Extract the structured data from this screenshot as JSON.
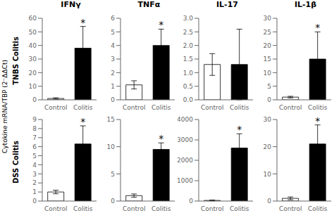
{
  "ylabel": "Cytokine mRNA/TBP (2⁻ΔΔCt)",
  "annotations": [
    "TNBS Colitis",
    "DSS Colitis"
  ],
  "chart_data": [
    {
      "type": "bar",
      "title": "IFNγ",
      "categories": [
        "Control",
        "Colitis"
      ],
      "values": [
        1,
        38
      ],
      "errors": [
        0.5,
        16
      ],
      "colors": [
        "white",
        "black"
      ],
      "ylim": [
        0,
        60
      ],
      "yticks": [
        0,
        10,
        20,
        30,
        40,
        50,
        60
      ],
      "annotations": [
        {
          "text": "*",
          "x": "Colitis"
        }
      ]
    },
    {
      "type": "bar",
      "title": "TNFα",
      "categories": [
        "Control",
        "Colitis"
      ],
      "values": [
        1.1,
        4.0
      ],
      "errors": [
        0.3,
        1.2
      ],
      "colors": [
        "white",
        "black"
      ],
      "ylim": [
        0,
        6
      ],
      "yticks": [
        0,
        1,
        2,
        3,
        4,
        5,
        6
      ],
      "annotations": [
        {
          "text": "*",
          "x": "Colitis"
        }
      ]
    },
    {
      "type": "bar",
      "title": "IL-17",
      "categories": [
        "Control",
        "Colitis"
      ],
      "values": [
        1.3,
        1.3
      ],
      "errors": [
        0.4,
        1.3
      ],
      "colors": [
        "white",
        "black"
      ],
      "ylim": [
        0,
        3.0
      ],
      "yticks": [
        {
          "value": 0,
          "label": "0.0"
        },
        0.5,
        {
          "value": 1.0,
          "label": "1.0"
        },
        1.5,
        {
          "value": 2.0,
          "label": "2.0"
        },
        2.5,
        {
          "value": 3.0,
          "label": "3.0"
        }
      ]
    },
    {
      "type": "bar",
      "title": "IL-1β",
      "categories": [
        "Control",
        "Colitis"
      ],
      "values": [
        1,
        15
      ],
      "errors": [
        0.3,
        10
      ],
      "colors": [
        "white",
        "black"
      ],
      "ylim": [
        0,
        30
      ],
      "yticks": [
        0,
        5,
        10,
        15,
        20,
        25,
        30
      ],
      "annotations": [
        {
          "text": "*",
          "x": "Colitis"
        }
      ]
    },
    {
      "type": "bar",
      "categories": [
        "Control",
        "Colitis"
      ],
      "values": [
        1,
        6.3
      ],
      "errors": [
        0.2,
        2.0
      ],
      "colors": [
        "white",
        "black"
      ],
      "ylim": [
        0,
        9
      ],
      "yticks": [
        0,
        1,
        2,
        3,
        4,
        5,
        6,
        7,
        8,
        9
      ],
      "annotations": [
        {
          "text": "*",
          "x": "Colitis"
        }
      ]
    },
    {
      "type": "bar",
      "categories": [
        "Control",
        "Colitis"
      ],
      "values": [
        1,
        9.5
      ],
      "errors": [
        0.3,
        1.2
      ],
      "colors": [
        "white",
        "black"
      ],
      "ylim": [
        0,
        15
      ],
      "yticks": [
        0,
        5,
        10,
        15
      ],
      "annotations": [
        {
          "text": "*",
          "x": "Colitis"
        }
      ]
    },
    {
      "type": "bar",
      "categories": [
        "Control",
        "Colitis"
      ],
      "values": [
        30,
        2600
      ],
      "errors": [
        20,
        700
      ],
      "colors": [
        "white",
        "black"
      ],
      "ylim": [
        0,
        4000
      ],
      "yticks": [
        0,
        1000,
        2000,
        3000,
        4000
      ],
      "annotations": [
        {
          "text": "*",
          "x": "Colitis"
        }
      ]
    },
    {
      "type": "bar",
      "categories": [
        "Control",
        "Colitis"
      ],
      "values": [
        1,
        21
      ],
      "errors": [
        0.5,
        7
      ],
      "colors": [
        "white",
        "black"
      ],
      "ylim": [
        0,
        30
      ],
      "yticks": [
        0,
        10,
        20,
        30
      ],
      "annotations": [
        {
          "text": "*",
          "x": "Colitis"
        }
      ]
    }
  ]
}
